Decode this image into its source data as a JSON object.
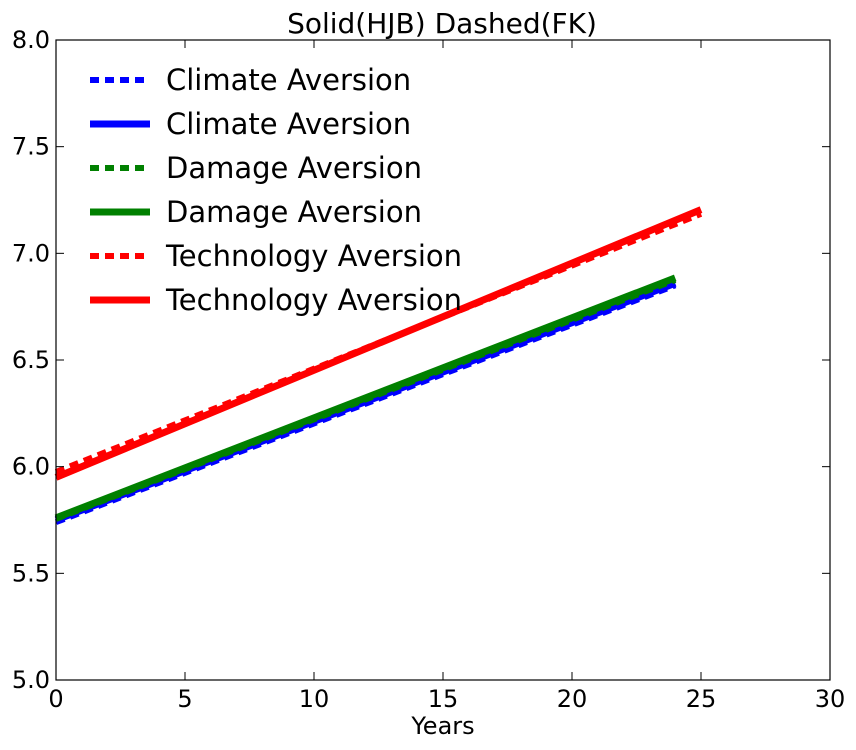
{
  "chart_data": {
    "type": "line",
    "title": "Solid(HJB) Dashed(FK)",
    "xlabel": "Years",
    "ylabel": "",
    "xlim": [
      0,
      30
    ],
    "ylim": [
      5.0,
      8.0
    ],
    "xticks": [
      0,
      5,
      10,
      15,
      20,
      25,
      30
    ],
    "xtick_labels": [
      "0",
      "5",
      "10",
      "15",
      "20",
      "25",
      "30"
    ],
    "yticks": [
      5.0,
      5.5,
      6.0,
      6.5,
      7.0,
      7.5,
      8.0
    ],
    "ytick_labels": [
      "5.0",
      "5.5",
      "6.0",
      "6.5",
      "7.0",
      "7.5",
      "8.0"
    ],
    "grid": false,
    "legend_position": "top-left",
    "series": [
      {
        "name": "Climate Aversion",
        "style": "dotted",
        "color": "#0000ff",
        "x": [
          0,
          24
        ],
        "y": [
          5.74,
          6.85
        ]
      },
      {
        "name": "Climate Aversion",
        "style": "solid",
        "color": "#0000ff",
        "x": [
          0,
          24
        ],
        "y": [
          5.75,
          6.86
        ]
      },
      {
        "name": "Damage Aversion",
        "style": "dotted",
        "color": "#008000",
        "x": [
          0,
          24
        ],
        "y": [
          5.755,
          6.875
        ]
      },
      {
        "name": "Damage Aversion",
        "style": "solid",
        "color": "#008000",
        "x": [
          0,
          24
        ],
        "y": [
          5.76,
          6.885
        ]
      },
      {
        "name": "Technology Aversion",
        "style": "dotted",
        "color": "#ff0000",
        "x": [
          0,
          25
        ],
        "y": [
          5.975,
          7.185
        ]
      },
      {
        "name": "Technology Aversion",
        "style": "solid",
        "color": "#ff0000",
        "x": [
          0,
          25
        ],
        "y": [
          5.95,
          7.205
        ]
      }
    ]
  }
}
